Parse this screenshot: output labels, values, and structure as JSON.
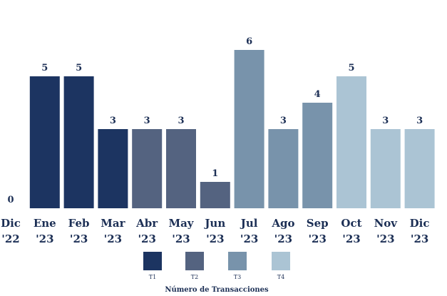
{
  "chart_data": {
    "type": "bar",
    "categories": [
      [
        "Dic",
        "'22"
      ],
      [
        "Ene",
        "'23"
      ],
      [
        "Feb",
        "'23"
      ],
      [
        "Mar",
        "'23"
      ],
      [
        "Abr",
        "'23"
      ],
      [
        "May",
        "'23"
      ],
      [
        "Jun",
        "'23"
      ],
      [
        "Jul",
        "'23"
      ],
      [
        "Ago",
        "'23"
      ],
      [
        "Sep",
        "'23"
      ],
      [
        "Oct",
        "'23"
      ],
      [
        "Nov",
        "'23"
      ],
      [
        "Dic",
        "'23"
      ]
    ],
    "values": [
      0,
      5,
      5,
      3,
      3,
      3,
      1,
      6,
      3,
      4,
      5,
      3,
      3
    ],
    "quarter": [
      "",
      "T1",
      "T1",
      "T1",
      "T2",
      "T2",
      "T2",
      "T3",
      "T3",
      "T3",
      "T4",
      "T4",
      "T4"
    ],
    "legend": {
      "title": "Número de Transacciones",
      "items": [
        {
          "name": "T1",
          "color": "#1c3461"
        },
        {
          "name": "T2",
          "color": "#546380"
        },
        {
          "name": "T3",
          "color": "#7893ab"
        },
        {
          "name": "T4",
          "color": "#abc4d4"
        }
      ]
    },
    "ylim": [
      0,
      6
    ],
    "grid": false,
    "legend_placement": "bottom"
  }
}
